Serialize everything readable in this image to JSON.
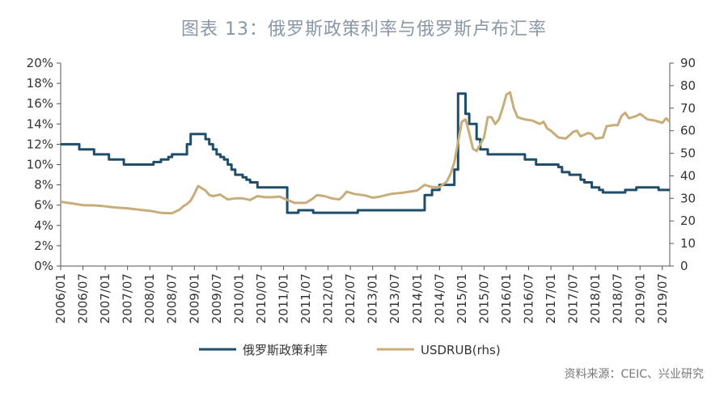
{
  "chart_data": {
    "type": "line",
    "title": "图表 13：俄罗斯政策利率与俄罗斯卢布汇率",
    "source": "资料来源：CEIC、兴业研究",
    "left_axis": {
      "ylim": [
        0,
        20
      ],
      "ticks": [
        0,
        2,
        4,
        6,
        8,
        10,
        12,
        14,
        16,
        18,
        20
      ],
      "tick_labels": [
        "0%",
        "2%",
        "4%",
        "6%",
        "8%",
        "10%",
        "12%",
        "14%",
        "16%",
        "18%",
        "20%"
      ]
    },
    "right_axis": {
      "ylim": [
        0,
        90
      ],
      "ticks": [
        0,
        10,
        20,
        30,
        40,
        50,
        60,
        70,
        80,
        90
      ],
      "tick_labels": [
        "0",
        "10",
        "20",
        "30",
        "40",
        "50",
        "60",
        "70",
        "80",
        "90"
      ]
    },
    "x_range": [
      "2006-01",
      "2019-09"
    ],
    "x_tick_labels": [
      "2006/01",
      "2006/07",
      "2007/01",
      "2007/07",
      "2008/01",
      "2008/07",
      "2009/01",
      "2009/07",
      "2010/01",
      "2010/07",
      "2011/01",
      "2011/07",
      "2012/01",
      "2012/07",
      "2013/01",
      "2013/07",
      "2014/01",
      "2014/07",
      "2015/01",
      "2015/07",
      "2016/01",
      "2016/07",
      "2017/01",
      "2017/07",
      "2018/01",
      "2018/07",
      "2019/01",
      "2019/07"
    ],
    "legend_position": "bottom",
    "series": [
      {
        "name": "俄罗斯政策利率",
        "axis": "left",
        "color": "#1f4e6b",
        "step": true,
        "points": [
          [
            "2006-01",
            12.0
          ],
          [
            "2006-06",
            11.5
          ],
          [
            "2006-10",
            11.0
          ],
          [
            "2007-02",
            10.5
          ],
          [
            "2007-06",
            10.0
          ],
          [
            "2008-02",
            10.25
          ],
          [
            "2008-04",
            10.5
          ],
          [
            "2008-06",
            10.75
          ],
          [
            "2008-07",
            11.0
          ],
          [
            "2008-11",
            12.0
          ],
          [
            "2008-12",
            13.0
          ],
          [
            "2009-04",
            12.5
          ],
          [
            "2009-05",
            12.0
          ],
          [
            "2009-06",
            11.5
          ],
          [
            "2009-07",
            11.0
          ],
          [
            "2009-08",
            10.75
          ],
          [
            "2009-09",
            10.5
          ],
          [
            "2009-10",
            10.0
          ],
          [
            "2009-11",
            9.5
          ],
          [
            "2009-12",
            9.0
          ],
          [
            "2010-02",
            8.75
          ],
          [
            "2010-03",
            8.5
          ],
          [
            "2010-04",
            8.25
          ],
          [
            "2010-06",
            7.75
          ],
          [
            "2011-02",
            5.25
          ],
          [
            "2011-05",
            5.5
          ],
          [
            "2011-09",
            5.25
          ],
          [
            "2012-09",
            5.5
          ],
          [
            "2013-09",
            5.5
          ],
          [
            "2014-03",
            7.0
          ],
          [
            "2014-05",
            7.5
          ],
          [
            "2014-07",
            8.0
          ],
          [
            "2014-11",
            9.5
          ],
          [
            "2014-12",
            17.0
          ],
          [
            "2015-02",
            15.0
          ],
          [
            "2015-03",
            14.0
          ],
          [
            "2015-05",
            12.5
          ],
          [
            "2015-06",
            11.5
          ],
          [
            "2015-08",
            11.0
          ],
          [
            "2016-06",
            10.5
          ],
          [
            "2016-09",
            10.0
          ],
          [
            "2017-03",
            9.75
          ],
          [
            "2017-04",
            9.25
          ],
          [
            "2017-06",
            9.0
          ],
          [
            "2017-09",
            8.5
          ],
          [
            "2017-10",
            8.25
          ],
          [
            "2017-12",
            7.75
          ],
          [
            "2018-02",
            7.5
          ],
          [
            "2018-03",
            7.25
          ],
          [
            "2018-09",
            7.5
          ],
          [
            "2018-12",
            7.75
          ],
          [
            "2019-06",
            7.5
          ],
          [
            "2019-09",
            7.5
          ]
        ]
      },
      {
        "name": "USDRUB(rhs)",
        "axis": "right",
        "color": "#c8ad7a",
        "step": false,
        "points": [
          [
            "2006-01",
            28.5
          ],
          [
            "2006-04",
            27.8
          ],
          [
            "2006-07",
            27.0
          ],
          [
            "2006-10",
            26.9
          ],
          [
            "2007-01",
            26.5
          ],
          [
            "2007-04",
            25.9
          ],
          [
            "2007-07",
            25.6
          ],
          [
            "2007-10",
            25.0
          ],
          [
            "2008-01",
            24.5
          ],
          [
            "2008-04",
            23.6
          ],
          [
            "2008-07",
            23.4
          ],
          [
            "2008-09",
            25.0
          ],
          [
            "2008-10",
            26.5
          ],
          [
            "2008-11",
            27.5
          ],
          [
            "2008-12",
            29.0
          ],
          [
            "2009-01",
            32.0
          ],
          [
            "2009-02",
            35.5
          ],
          [
            "2009-03",
            34.5
          ],
          [
            "2009-04",
            33.5
          ],
          [
            "2009-05",
            31.5
          ],
          [
            "2009-06",
            31.0
          ],
          [
            "2009-08",
            31.7
          ],
          [
            "2009-10",
            29.5
          ],
          [
            "2009-12",
            30.0
          ],
          [
            "2010-02",
            30.0
          ],
          [
            "2010-04",
            29.3
          ],
          [
            "2010-06",
            31.0
          ],
          [
            "2010-08",
            30.5
          ],
          [
            "2010-10",
            30.5
          ],
          [
            "2010-12",
            30.8
          ],
          [
            "2011-01",
            30.0
          ],
          [
            "2011-04",
            28.0
          ],
          [
            "2011-07",
            28.0
          ],
          [
            "2011-09",
            30.0
          ],
          [
            "2011-10",
            31.5
          ],
          [
            "2011-12",
            31.0
          ],
          [
            "2012-02",
            30.0
          ],
          [
            "2012-04",
            29.5
          ],
          [
            "2012-05",
            31.0
          ],
          [
            "2012-06",
            33.0
          ],
          [
            "2012-08",
            32.0
          ],
          [
            "2012-11",
            31.3
          ],
          [
            "2013-01",
            30.3
          ],
          [
            "2013-03",
            30.8
          ],
          [
            "2013-06",
            32.0
          ],
          [
            "2013-09",
            32.5
          ],
          [
            "2013-11",
            33.0
          ],
          [
            "2014-01",
            33.5
          ],
          [
            "2014-03",
            36.0
          ],
          [
            "2014-05",
            35.0
          ],
          [
            "2014-07",
            35.0
          ],
          [
            "2014-09",
            37.5
          ],
          [
            "2014-10",
            41.0
          ],
          [
            "2014-11",
            46.0
          ],
          [
            "2014-12",
            55.0
          ],
          [
            "2015-01",
            64.0
          ],
          [
            "2015-02",
            65.0
          ],
          [
            "2015-03",
            59.0
          ],
          [
            "2015-04",
            52.0
          ],
          [
            "2015-05",
            51.0
          ],
          [
            "2015-06",
            54.0
          ],
          [
            "2015-07",
            57.0
          ],
          [
            "2015-08",
            66.0
          ],
          [
            "2015-09",
            66.0
          ],
          [
            "2015-10",
            63.0
          ],
          [
            "2015-11",
            65.0
          ],
          [
            "2015-12",
            70.0
          ],
          [
            "2016-01",
            76.0
          ],
          [
            "2016-02",
            77.0
          ],
          [
            "2016-03",
            70.0
          ],
          [
            "2016-04",
            66.0
          ],
          [
            "2016-06",
            65.0
          ],
          [
            "2016-08",
            64.5
          ],
          [
            "2016-10",
            63.0
          ],
          [
            "2016-11",
            64.0
          ],
          [
            "2016-12",
            61.0
          ],
          [
            "2017-01",
            60.0
          ],
          [
            "2017-03",
            57.0
          ],
          [
            "2017-05",
            56.5
          ],
          [
            "2017-07",
            59.5
          ],
          [
            "2017-08",
            60.0
          ],
          [
            "2017-09",
            57.5
          ],
          [
            "2017-11",
            59.0
          ],
          [
            "2017-12",
            58.5
          ],
          [
            "2018-01",
            56.5
          ],
          [
            "2018-03",
            57.0
          ],
          [
            "2018-04",
            62.0
          ],
          [
            "2018-06",
            62.5
          ],
          [
            "2018-07",
            62.5
          ],
          [
            "2018-08",
            66.5
          ],
          [
            "2018-09",
            68.0
          ],
          [
            "2018-10",
            65.5
          ],
          [
            "2018-12",
            66.5
          ],
          [
            "2019-01",
            67.5
          ],
          [
            "2019-03",
            65.0
          ],
          [
            "2019-05",
            64.5
          ],
          [
            "2019-07",
            63.5
          ],
          [
            "2019-08",
            65.5
          ],
          [
            "2019-09",
            64.0
          ]
        ]
      }
    ]
  }
}
